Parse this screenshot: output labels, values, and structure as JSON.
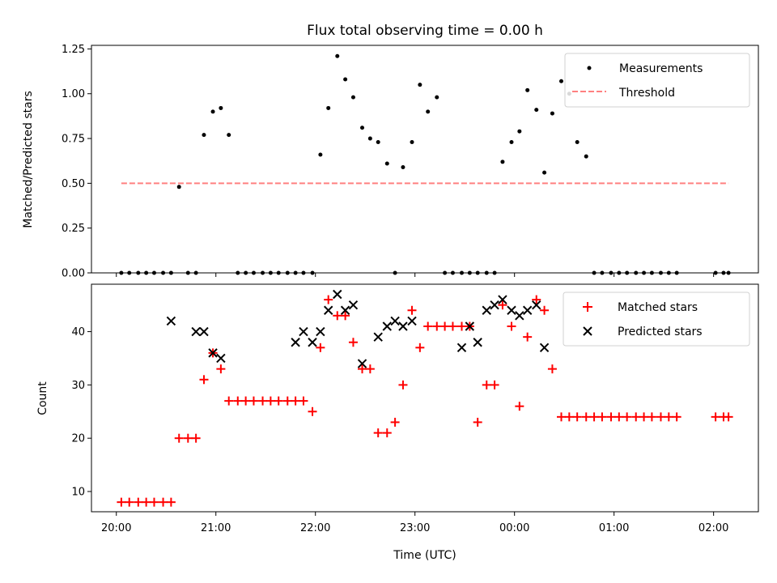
{
  "chart_data": [
    {
      "type": "scatter",
      "title": "Flux total observing time = 0.00 h",
      "xlabel": "",
      "ylabel": "Matched/Predicted stars",
      "xlim": [
        19.75,
        26.45
      ],
      "ylim": [
        0.0,
        1.27
      ],
      "yticks": [
        0.0,
        0.25,
        0.5,
        0.75,
        1.0,
        1.25
      ],
      "ytick_labels": [
        "0.00",
        "0.25",
        "0.50",
        "0.75",
        "1.00",
        "1.25"
      ],
      "legend": {
        "position": "top-right",
        "entries": [
          "Measurements",
          "Threshold"
        ]
      },
      "series": [
        {
          "name": "Measurements",
          "marker": "dot",
          "color": "#000000",
          "x": [
            20.05,
            20.13,
            20.22,
            20.3,
            20.38,
            20.47,
            20.55,
            20.63,
            20.72,
            20.8,
            20.88,
            20.97,
            21.05,
            21.13,
            21.22,
            21.3,
            21.38,
            21.47,
            21.55,
            21.63,
            21.72,
            21.8,
            21.88,
            21.97,
            22.05,
            22.13,
            22.22,
            22.3,
            22.38,
            22.47,
            22.55,
            22.63,
            22.72,
            22.8,
            22.88,
            22.97,
            23.05,
            23.13,
            23.22,
            23.3,
            23.38,
            23.47,
            23.55,
            23.63,
            23.72,
            23.8,
            23.88,
            23.97,
            24.05,
            24.13,
            24.22,
            24.3,
            24.38,
            24.47,
            24.55,
            24.63,
            24.72,
            24.8,
            24.88,
            24.97,
            25.05,
            25.13,
            25.22,
            25.3,
            25.38,
            25.47,
            25.55,
            25.63,
            26.02,
            26.1,
            26.15
          ],
          "y": [
            0,
            0,
            0,
            0,
            0,
            0,
            0,
            0.48,
            0,
            0,
            0.77,
            0.9,
            0.92,
            0.77,
            0,
            0,
            0,
            0,
            0,
            0,
            0,
            0,
            0,
            0,
            0.66,
            0.92,
            1.21,
            1.08,
            0.98,
            0.81,
            0.75,
            0.73,
            0.61,
            0,
            0.59,
            0.73,
            1.05,
            0.9,
            0.98,
            0,
            0,
            0,
            0,
            0,
            0,
            0,
            0.62,
            0.73,
            0.79,
            1.02,
            0.91,
            0.56,
            0.89,
            1.07,
            1.0,
            0.73,
            0.65,
            0,
            0,
            0,
            0,
            0,
            0,
            0,
            0,
            0,
            0,
            0,
            0,
            0,
            0
          ]
        },
        {
          "name": "Threshold",
          "style": "dashed",
          "color": "#ff8080",
          "x": [
            20.05,
            26.15
          ],
          "y": [
            0.5,
            0.5
          ]
        }
      ]
    },
    {
      "type": "scatter",
      "title": "",
      "xlabel": "Time (UTC)",
      "ylabel": "Count",
      "xlim": [
        19.75,
        26.45
      ],
      "ylim": [
        6.2,
        48.9
      ],
      "xticks": [
        20,
        21,
        22,
        23,
        24,
        25,
        26
      ],
      "xtick_labels": [
        "20:00",
        "21:00",
        "22:00",
        "23:00",
        "00:00",
        "01:00",
        "02:00"
      ],
      "yticks": [
        10,
        20,
        30,
        40
      ],
      "ytick_labels": [
        "10",
        "20",
        "30",
        "40"
      ],
      "legend": {
        "position": "top-right",
        "entries": [
          "Matched stars",
          "Predicted stars"
        ]
      },
      "series": [
        {
          "name": "Matched stars",
          "marker": "plus",
          "color": "#ff0000",
          "x": [
            20.05,
            20.13,
            20.22,
            20.3,
            20.38,
            20.47,
            20.55,
            20.63,
            20.72,
            20.8,
            20.88,
            20.97,
            21.05,
            21.13,
            21.22,
            21.3,
            21.38,
            21.47,
            21.55,
            21.63,
            21.72,
            21.8,
            21.88,
            21.97,
            22.05,
            22.13,
            22.22,
            22.3,
            22.38,
            22.47,
            22.55,
            22.63,
            22.72,
            22.8,
            22.88,
            22.97,
            23.05,
            23.13,
            23.22,
            23.3,
            23.38,
            23.47,
            23.55,
            23.63,
            23.72,
            23.8,
            23.88,
            23.97,
            24.05,
            24.13,
            24.22,
            24.3,
            24.38,
            24.47,
            24.55,
            24.63,
            24.72,
            24.8,
            24.88,
            24.97,
            25.05,
            25.13,
            25.22,
            25.3,
            25.38,
            25.47,
            25.55,
            25.63,
            26.02,
            26.1,
            26.15
          ],
          "y": [
            8,
            8,
            8,
            8,
            8,
            8,
            8,
            20,
            20,
            20,
            31,
            36,
            33,
            27,
            27,
            27,
            27,
            27,
            27,
            27,
            27,
            27,
            27,
            25,
            37,
            46,
            43,
            43,
            38,
            33,
            33,
            21,
            21,
            23,
            30,
            44,
            37,
            41,
            41,
            41,
            41,
            41,
            41,
            23,
            30,
            30,
            45,
            41,
            26,
            39,
            46,
            44,
            33,
            24,
            24,
            24,
            24,
            24,
            24,
            24,
            24,
            24,
            24,
            24,
            24,
            24,
            24,
            24,
            24,
            24,
            24
          ]
        },
        {
          "name": "Predicted stars",
          "marker": "x",
          "color": "#000000",
          "x": [
            20.55,
            20.8,
            20.88,
            20.97,
            21.05,
            21.8,
            21.88,
            21.97,
            22.05,
            22.13,
            22.22,
            22.3,
            22.38,
            22.47,
            22.63,
            22.72,
            22.8,
            22.88,
            22.97,
            23.47,
            23.55,
            23.63,
            23.72,
            23.8,
            23.88,
            23.97,
            24.05,
            24.13,
            24.22,
            24.3
          ],
          "y": [
            42,
            40,
            40,
            36,
            35,
            38,
            40,
            38,
            40,
            44,
            47,
            44,
            45,
            34,
            39,
            41,
            42,
            41,
            42,
            37,
            41,
            38,
            44,
            45,
            46,
            44,
            43,
            44,
            45,
            37
          ]
        }
      ]
    }
  ]
}
